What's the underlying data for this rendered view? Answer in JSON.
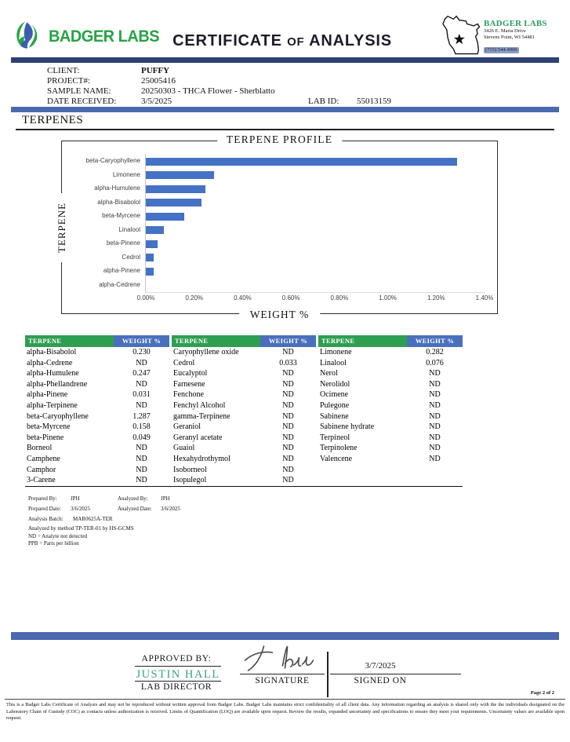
{
  "header": {
    "logo_text": "BADGER LABS",
    "title_part1": "CERTIFICATE",
    "title_of": "OF",
    "title_part2": "ANALYSIS",
    "lab_name": "BADGER LABS",
    "address_line1": "3426 E. Maria Drive",
    "address_line2": "Stevens Point, WI 54481",
    "phone": "(715) 544-4900"
  },
  "client": {
    "client_label": "CLIENT:",
    "client_value": "PUFFY",
    "project_label": "PROJECT#:",
    "project_value": "25005416",
    "sample_label": "SAMPLE NAME:",
    "sample_value": "20250303 - THCA Flower - Sherblatto",
    "date_label": "DATE RECEIVED:",
    "date_value": "3/5/2025",
    "lab_id_label": "LAB ID:",
    "lab_id_value": "55013159"
  },
  "section_title": "TERPENES",
  "chart_data": {
    "type": "bar",
    "orientation": "horizontal",
    "title": "TERPENE PROFILE",
    "xlabel": "WEIGHT %",
    "ylabel": "TERPENE",
    "categories": [
      "beta-Caryophyllene",
      "Limonene",
      "alpha-Humulene",
      "alpha-Bisabolol",
      "beta-Myrcene",
      "Linalool",
      "beta-Pinene",
      "Cedrol",
      "alpha-Pinene",
      "alpha-Cedrene"
    ],
    "values": [
      1.287,
      0.282,
      0.247,
      0.23,
      0.158,
      0.076,
      0.049,
      0.033,
      0.031,
      0
    ],
    "xlim": [
      0,
      1.4
    ],
    "x_tick_labels": [
      "0.00%",
      "0.20%",
      "0.40%",
      "0.60%",
      "0.80%",
      "1.00%",
      "1.20%",
      "1.40%"
    ],
    "bar_color": "#4472c4",
    "grid": false,
    "legend": "none"
  },
  "table": {
    "name_header": "TERPENE",
    "value_header": "WEIGHT %",
    "groups": [
      [
        [
          "alpha-Bisabolol",
          "0.230"
        ],
        [
          "alpha-Cedrene",
          "ND"
        ],
        [
          "alpha-Humulene",
          "0.247"
        ],
        [
          "alpha-Phellandrene",
          "ND"
        ],
        [
          "alpha-Pinene",
          "0.031"
        ],
        [
          "alpha-Terpinene",
          "ND"
        ],
        [
          "beta-Caryophyllene",
          "1.287"
        ],
        [
          "beta-Myrcene",
          "0.158"
        ],
        [
          "beta-Pinene",
          "0.049"
        ],
        [
          "Borneol",
          "ND"
        ],
        [
          "Camphene",
          "ND"
        ],
        [
          "Camphor",
          "ND"
        ],
        [
          "3-Carene",
          "ND"
        ]
      ],
      [
        [
          "Caryophyllene oxide",
          "ND"
        ],
        [
          "Cedrol",
          "0.033"
        ],
        [
          "Eucalyptol",
          "ND"
        ],
        [
          "Farnesene",
          "ND"
        ],
        [
          "Fenchone",
          "ND"
        ],
        [
          "Fenchyl Alcohol",
          "ND"
        ],
        [
          "gamma-Terpinene",
          "ND"
        ],
        [
          "Geraniol",
          "ND"
        ],
        [
          "Geranyl acetate",
          "ND"
        ],
        [
          "Guaiol",
          "ND"
        ],
        [
          "Hexahydrothymol",
          "ND"
        ],
        [
          "Isoborneol",
          "ND"
        ],
        [
          "Isopulegol",
          "ND"
        ]
      ],
      [
        [
          "Limonene",
          "0.282"
        ],
        [
          "Linalool",
          "0.076"
        ],
        [
          "Nerol",
          "ND"
        ],
        [
          "Nerolidol",
          "ND"
        ],
        [
          "Ocimene",
          "ND"
        ],
        [
          "Pulegone",
          "ND"
        ],
        [
          "Sabinene",
          "ND"
        ],
        [
          "Sabinene hydrate",
          "ND"
        ],
        [
          "Terpineol",
          "ND"
        ],
        [
          "Terpinolene",
          "ND"
        ],
        [
          "Valencene",
          "ND"
        ]
      ]
    ]
  },
  "analysis": {
    "prepared_by_label": "Prepared By:",
    "prepared_by": "JPH",
    "analyzed_by_label": "Analyzed By:",
    "analyzed_by": "JPH",
    "prepared_date_label": "Prepared Date:",
    "prepared_date": "3/6/2025",
    "analyzed_date_label": "Analyzed Date:",
    "analyzed_date": "3/6/2025",
    "batch_label": "Analysis Batch:",
    "batch": "MAR0625A-TER",
    "method_note": "Analyzed by method TP-TER-01 by HS-GCMS",
    "nd_note": "ND = Analyte not detected",
    "ppb_note": "PPB = Parts per billion"
  },
  "approval": {
    "approved_by_label": "APPROVED BY:",
    "approver_name": "JUSTIN HALL",
    "approver_title": "LAB DIRECTOR",
    "signature_label": "SIGNATURE",
    "signed_on_date": "3/7/2025",
    "signed_on_label": "SIGNED ON"
  },
  "footer": {
    "page_number": "Page 2 of 2",
    "disclaimer": "This is a Badger Labs Certificate of Analysis and may not be reproduced without written approval from Badger Labs. Badger Labs maintains strict confidentiality of all client data. Any information regarding an analysis is shared only with the the individuals designated on the Laboratory Chain of Custody (COC) as contacts unless authorization is received. Limits of Quantification (LOQ) are available upon request. Review the results, expanded uncertainty and specifications to ensure they meet your requirements. Uncertainty values are available upon request."
  },
  "colors": {
    "logo_green": "#27a345",
    "table_green": "#2e9e51",
    "table_blue": "#4a70bd",
    "divider_navy": "#2d4173",
    "divider_blue": "#4a69ae",
    "bar_blue": "#4472c4",
    "approver_green": "#3aa183"
  }
}
